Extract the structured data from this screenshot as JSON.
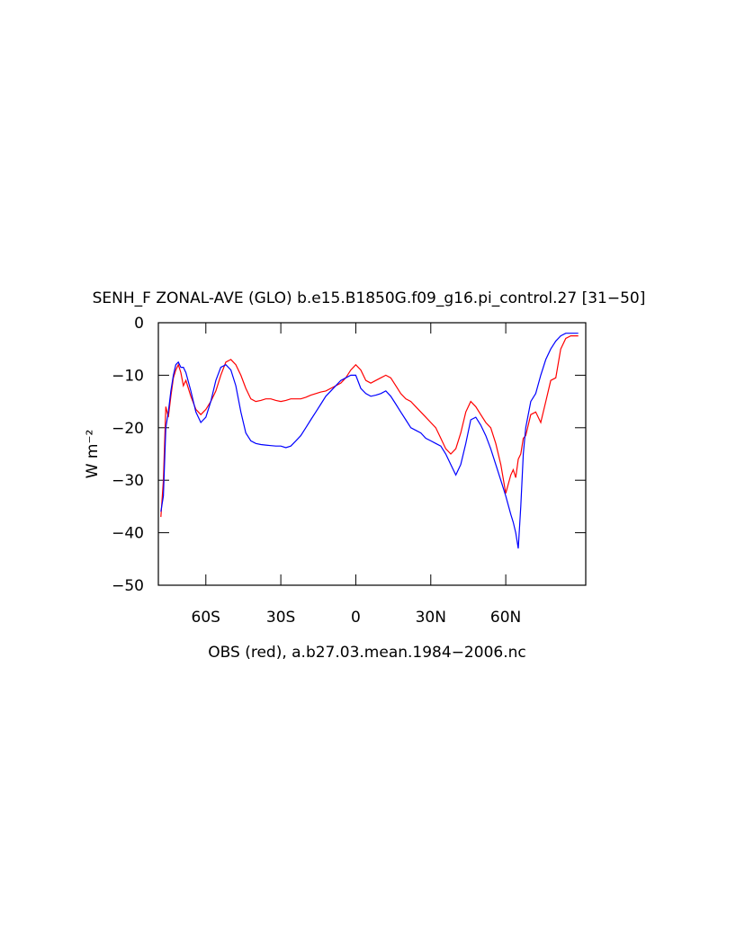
{
  "chart_data": {
    "type": "line",
    "title": "SENH_F ZONAL-AVE (GLO) b.e15.B1850G.f09_g16.pi_control.27 [31−50]",
    "ylabel": "W m⁻²",
    "xlabel": "OBS (red), a.b27.03.mean.1984−2006.nc",
    "xlim": [
      -79,
      92
    ],
    "ylim": [
      -50,
      0
    ],
    "xticks": [
      {
        "value": -60,
        "label": "60S"
      },
      {
        "value": -30,
        "label": "30S"
      },
      0,
      {
        "value": 30,
        "label": "30N"
      },
      {
        "value": 60,
        "label": "60N"
      }
    ],
    "yticks": [
      {
        "value": -50,
        "label": "−50"
      },
      {
        "value": -40,
        "label": "−40"
      },
      {
        "value": -30,
        "label": "−30"
      },
      {
        "value": -20,
        "label": "−20"
      },
      {
        "value": -10,
        "label": "−10"
      },
      0
    ],
    "x": [
      -78,
      -77,
      -76,
      -75,
      -74,
      -73,
      -72,
      -71,
      -70,
      -69,
      -68,
      -66,
      -64,
      -62,
      -60,
      -58,
      -56,
      -54,
      -52,
      -50,
      -48,
      -46,
      -44,
      -42,
      -40,
      -38,
      -36,
      -34,
      -32,
      -30,
      -28,
      -26,
      -24,
      -22,
      -20,
      -18,
      -16,
      -14,
      -12,
      -10,
      -8,
      -6,
      -4,
      -2,
      0,
      2,
      4,
      6,
      8,
      10,
      12,
      14,
      16,
      18,
      20,
      22,
      24,
      26,
      28,
      30,
      32,
      34,
      36,
      38,
      40,
      42,
      44,
      46,
      48,
      50,
      52,
      54,
      56,
      58,
      60,
      62,
      63,
      64,
      65,
      66,
      67,
      68,
      70,
      72,
      74,
      76,
      78,
      80,
      82,
      84,
      86,
      88,
      89
    ],
    "series": [
      {
        "color": "#ff0000",
        "values": [
          -37,
          -30,
          -16,
          -18,
          -14,
          -10.5,
          -9,
          -8,
          -9.5,
          -12,
          -11,
          -14,
          -16.5,
          -17.5,
          -16.5,
          -15,
          -13,
          -10,
          -7.5,
          -7,
          -8,
          -10,
          -12.5,
          -14.5,
          -15,
          -14.8,
          -14.5,
          -14.5,
          -14.8,
          -15,
          -14.8,
          -14.5,
          -14.5,
          -14.5,
          -14.2,
          -13.8,
          -13.5,
          -13.2,
          -13,
          -12.5,
          -12,
          -11.5,
          -10.5,
          -9,
          -8,
          -9,
          -11,
          -11.5,
          -11,
          -10.5,
          -10,
          -10.5,
          -12,
          -13.5,
          -14.5,
          -15,
          -16,
          -17,
          -18,
          -19,
          -20,
          -22,
          -24,
          -25,
          -24,
          -21,
          -17,
          -15,
          -16,
          -17.5,
          -19,
          -20,
          -23,
          -27,
          -32.5,
          -29,
          -28,
          -29.5,
          -26,
          -25,
          -22,
          -21.5,
          -17.5,
          -17,
          -19,
          -15,
          -11,
          -10.5,
          -5,
          -3,
          -2.5,
          -2.5,
          -2.5
        ]
      },
      {
        "color": "#0000ff",
        "values": [
          -36,
          -33,
          -20,
          -17,
          -13,
          -10,
          -8,
          -7.5,
          -8.5,
          -8.5,
          -9.5,
          -13,
          -17,
          -19,
          -18,
          -15,
          -11,
          -8.5,
          -8,
          -9,
          -12,
          -17,
          -21,
          -22.5,
          -23,
          -23.2,
          -23.3,
          -23.4,
          -23.5,
          -23.5,
          -23.8,
          -23.5,
          -22.5,
          -21.5,
          -20,
          -18.5,
          -17,
          -15.5,
          -14,
          -13,
          -12,
          -11,
          -10.5,
          -10,
          -10,
          -12.5,
          -13.5,
          -14,
          -13.8,
          -13.5,
          -13,
          -14,
          -15.5,
          -17,
          -18.5,
          -20,
          -20.5,
          -21,
          -22,
          -22.5,
          -23,
          -23.5,
          -25,
          -27,
          -29,
          -27,
          -23,
          -18.5,
          -18,
          -19.5,
          -21.5,
          -24,
          -27,
          -30,
          -33,
          -36.5,
          -38,
          -40,
          -43,
          -35,
          -25,
          -20,
          -15,
          -13.5,
          -10,
          -7,
          -5,
          -3.5,
          -2.5,
          -2,
          -2,
          -2,
          -2
        ]
      }
    ]
  }
}
